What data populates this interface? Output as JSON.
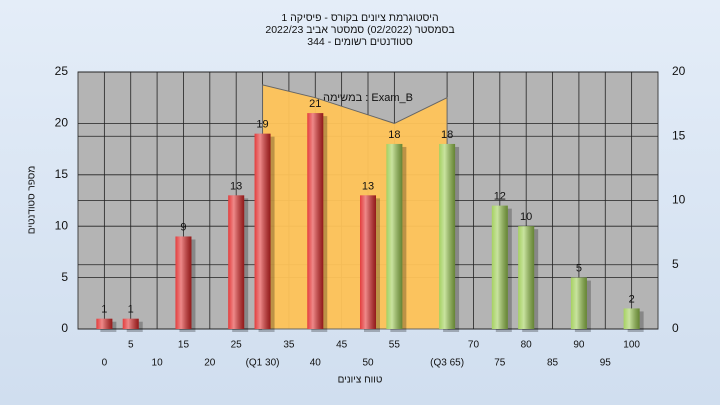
{
  "chart_data": {
    "type": "bar",
    "title": [
      "היסטוגרמת ציונים בקורס - פיסיקה 1",
      "בסמסטר  (02/2022)  סמסטר אביב 2022/23",
      "סטודנטים רשומים - 344"
    ],
    "x_label": "טווח ציונים",
    "y_label": "מספר סטודנטים",
    "x": [
      0,
      5,
      15,
      25,
      30,
      40,
      50,
      55,
      65,
      75,
      80,
      90,
      100
    ],
    "values": [
      1,
      1,
      9,
      13,
      19,
      21,
      13,
      18,
      18,
      12,
      10,
      5,
      2
    ],
    "colors": [
      "#e02828",
      "#e02828",
      "#e02828",
      "#e02828",
      "#e02828",
      "#e02828",
      "#e02828",
      "#9ccc50",
      "#9ccc50",
      "#9ccc50",
      "#9ccc50",
      "#9ccc50",
      "#9ccc50"
    ],
    "area": {
      "name": "במשימה : Exam_B",
      "color": "#ffc45a",
      "axis": "y2",
      "x": [
        30,
        40,
        55,
        65
      ],
      "values": [
        19,
        18,
        16,
        18
      ]
    },
    "xlim": [
      -5,
      105
    ],
    "xticks": [
      0,
      5,
      10,
      15,
      20,
      25,
      {
        "value": 30,
        "label": "(Q1 30)"
      },
      35,
      40,
      45,
      50,
      55,
      {
        "value": 65,
        "label": "(Q3 65)"
      },
      70,
      75,
      80,
      85,
      90,
      95,
      100
    ],
    "ylim": [
      0,
      25
    ],
    "yticks": [
      0,
      5,
      10,
      15,
      20,
      25
    ],
    "y2lim": [
      0,
      20
    ],
    "y2ticks": [
      0,
      5,
      10,
      15,
      20
    ],
    "grid": true
  }
}
